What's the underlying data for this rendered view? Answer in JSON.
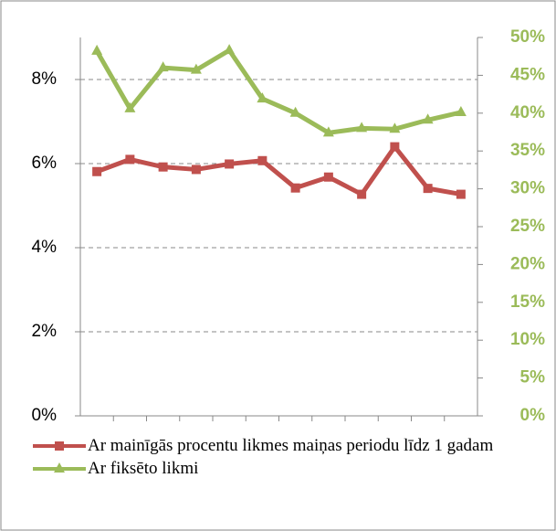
{
  "chart_data": {
    "type": "line",
    "categories": [
      null,
      null,
      null,
      null,
      null,
      null,
      null,
      null,
      null,
      null,
      null,
      null
    ],
    "series": [
      {
        "name": "Ar mainīgās procentu likmes  maiņas periodu līdz 1 gadam",
        "color": "#c0504d",
        "marker": "square",
        "values": [
          5.81,
          6.1,
          5.92,
          5.86,
          5.99,
          6.07,
          5.42,
          5.68,
          5.27,
          6.4,
          5.41,
          5.27
        ]
      },
      {
        "name": "Ar fiksēto likmi",
        "color": "#9bbb59",
        "marker": "triangle",
        "axis": "y2",
        "values": [
          48.2,
          40.6,
          46.0,
          45.7,
          48.3,
          41.9,
          40.0,
          37.4,
          38.0,
          37.9,
          39.1,
          40.1
        ]
      }
    ],
    "ylim": [
      0,
      9
    ],
    "yticks": [
      {
        "value": 0,
        "label": "0%"
      },
      {
        "value": 2,
        "label": "2%"
      },
      {
        "value": 4,
        "label": "4%"
      },
      {
        "value": 6,
        "label": "6%"
      },
      {
        "value": 8,
        "label": "8%"
      }
    ],
    "y2lim": [
      0,
      50
    ],
    "y2ticks": [
      {
        "value": 0,
        "label": "0%"
      },
      {
        "value": 5,
        "label": "5%"
      },
      {
        "value": 10,
        "label": "10%"
      },
      {
        "value": 15,
        "label": "15%"
      },
      {
        "value": 20,
        "label": "20%"
      },
      {
        "value": 25,
        "label": "25%"
      },
      {
        "value": 30,
        "label": "30%"
      },
      {
        "value": 35,
        "label": "35%"
      },
      {
        "value": 40,
        "label": "40%"
      },
      {
        "value": 45,
        "label": "45%"
      },
      {
        "value": 50,
        "label": "50%"
      }
    ],
    "grid": true,
    "legend": "bottom"
  }
}
